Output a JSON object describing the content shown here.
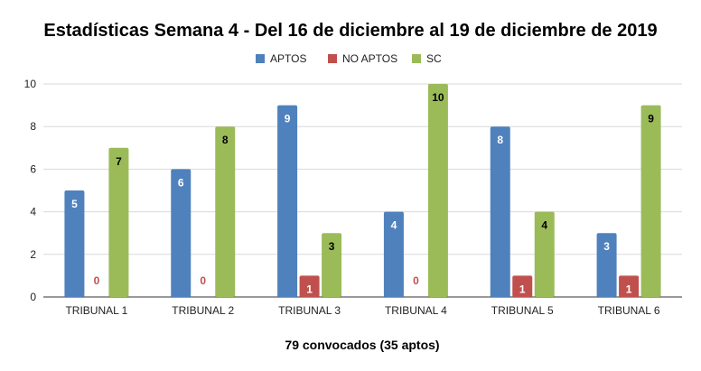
{
  "chart_data": {
    "type": "bar",
    "title": "Estadísticas Semana 4 - Del 16 de diciembre al 19 de diciembre de 2019",
    "xlabel": "79 convocados (35 aptos)",
    "ylabel": "",
    "ylim": [
      0,
      10
    ],
    "yticks": [
      0,
      2,
      4,
      6,
      8,
      10
    ],
    "grid": true,
    "legend_position": "top-center",
    "categories": [
      "TRIBUNAL 1",
      "TRIBUNAL 2",
      "TRIBUNAL 3",
      "TRIBUNAL 4",
      "TRIBUNAL 5",
      "TRIBUNAL 6"
    ],
    "series": [
      {
        "name": "APTOS",
        "color": "#4f81bd",
        "label_color": "#ffffff",
        "values": [
          5,
          6,
          9,
          4,
          8,
          3
        ]
      },
      {
        "name": "NO APTOS",
        "color": "#c0504d",
        "label_color": "#ffffff",
        "zero_label_color": "#c0504d",
        "values": [
          0,
          0,
          1,
          0,
          1,
          1
        ]
      },
      {
        "name": "SC",
        "color": "#9bbb59",
        "label_color": "#000000",
        "values": [
          7,
          8,
          3,
          10,
          4,
          9
        ]
      }
    ]
  }
}
